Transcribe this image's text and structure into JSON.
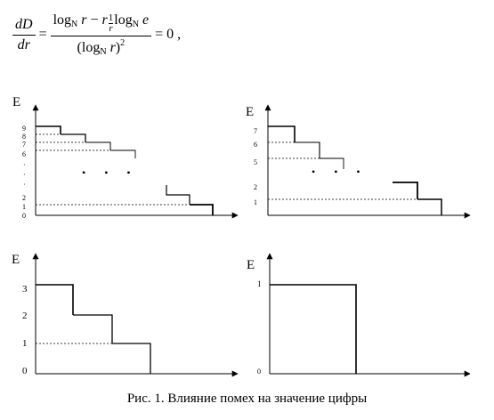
{
  "formula": {
    "lhs_num": "dD",
    "lhs_den": "dr",
    "equals": "=",
    "num_log": "log",
    "num_base": "N",
    "num_r1": "r",
    "num_minus": "−",
    "num_r2": "r",
    "mini_num": "1",
    "mini_den": "r",
    "num_log2": "log",
    "num_base2": "N",
    "num_e": "e",
    "den_open": "(log",
    "den_base": "N",
    "den_r": "r",
    "den_close": ")",
    "den_exp": "2",
    "rhs": "= 0 ,"
  },
  "panels": [
    {
      "id": "top-left",
      "axis_label": "E",
      "tick_labels": [
        "9",
        "8",
        "7",
        "6",
        "·",
        "·",
        "·",
        "2",
        "1",
        "0"
      ],
      "ellipsis": "• • •"
    },
    {
      "id": "top-right",
      "axis_label": "E",
      "tick_labels": [
        "7",
        "6",
        "5",
        "2",
        "1"
      ],
      "ellipsis": "• • •"
    },
    {
      "id": "bottom-left",
      "axis_label": "E",
      "tick_labels": [
        "3",
        "2",
        "1",
        "0"
      ]
    },
    {
      "id": "bottom-right",
      "axis_label": "E",
      "tick_labels": [
        "1",
        "0"
      ]
    }
  ],
  "caption": "Рис. 1. Влияние помех на значение цифры"
}
